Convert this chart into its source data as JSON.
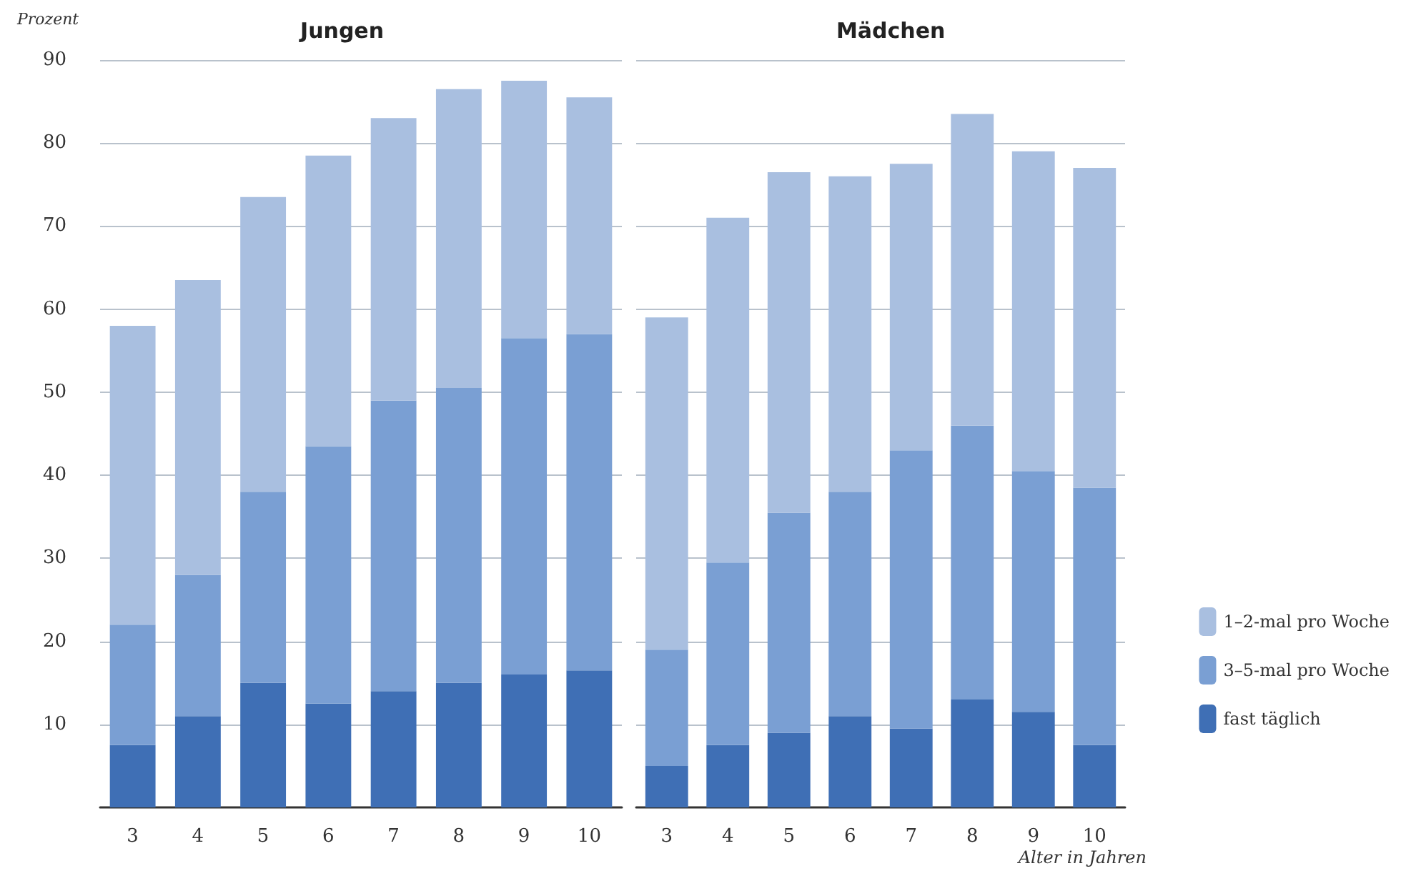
{
  "chart_data": [
    {
      "type": "bar",
      "title": "Jungen",
      "ylabel": "Prozent",
      "categories": [
        "3",
        "4",
        "5",
        "6",
        "7",
        "8",
        "9",
        "10"
      ],
      "stacked": true,
      "ylim": [
        0,
        90
      ],
      "yticks": [
        10,
        20,
        30,
        40,
        50,
        60,
        70,
        80,
        90
      ],
      "grid": "y",
      "legend": false,
      "series": [
        {
          "color": "#3f6fb5",
          "values": [
            7.5,
            11,
            15,
            12.5,
            14,
            15,
            16,
            16.5
          ]
        },
        {
          "color": "#7a9fd3",
          "values": [
            14.5,
            17,
            23,
            31,
            35,
            35.5,
            40.5,
            40.5
          ]
        },
        {
          "color": "#a9bfe0",
          "values": [
            36,
            35.5,
            35.5,
            35,
            34,
            36,
            31,
            28.5
          ]
        }
      ]
    },
    {
      "type": "bar",
      "title": "Mädchen",
      "xlabel": "Alter in Jahren",
      "categories": [
        "3",
        "4",
        "5",
        "6",
        "7",
        "8",
        "9",
        "10"
      ],
      "stacked": true,
      "ylim": [
        0,
        90
      ],
      "yticks": [
        10,
        20,
        30,
        40,
        50,
        60,
        70,
        80,
        90
      ],
      "grid": "y",
      "tick_labels": "x",
      "legend": "right",
      "series": [
        {
          "name": "fast täglich",
          "color": "#3f6fb5",
          "values": [
            5,
            7.5,
            9,
            11,
            9.5,
            13,
            11.5,
            7.5
          ]
        },
        {
          "name": "3–5-mal pro Woche",
          "color": "#7a9fd3",
          "values": [
            14,
            22,
            26.5,
            27,
            33.5,
            33,
            29,
            31
          ]
        },
        {
          "name": "1–2-mal pro Woche",
          "color": "#a9bfe0",
          "values": [
            40,
            41.5,
            41,
            38,
            34.5,
            37.5,
            38.5,
            38.5
          ]
        }
      ]
    }
  ]
}
